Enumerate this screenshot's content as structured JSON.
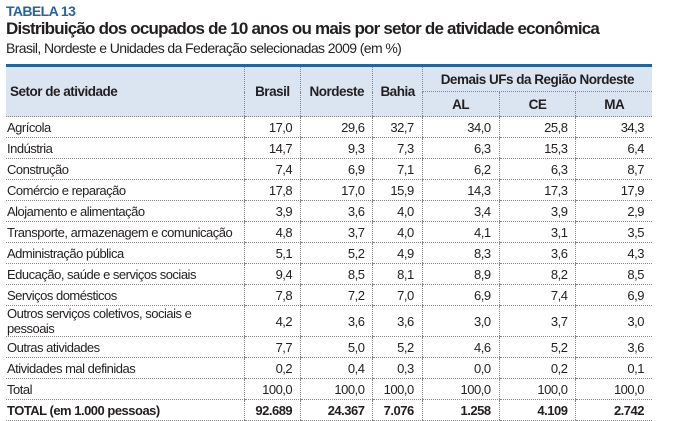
{
  "label": "TABELA 13",
  "title": "Distribuição dos ocupados de 10 anos ou mais por setor de atividade econômica",
  "subtitle": "Brasil, Nordeste e Unidades da Federação selecionadas 2009 (em %)",
  "headers": {
    "sector": "Setor de atividade",
    "brasil": "Brasil",
    "nordeste": "Nordeste",
    "bahia": "Bahia",
    "group": "Demais UFs da Região Nordeste",
    "al": "AL",
    "ce": "CE",
    "ma": "MA"
  },
  "rows": [
    [
      "Agrícola",
      "17,0",
      "29,6",
      "32,7",
      "34,0",
      "25,8",
      "34,3"
    ],
    [
      "Indústria",
      "14,7",
      "9,3",
      "7,3",
      "6,3",
      "15,3",
      "6,4"
    ],
    [
      "Construção",
      "7,4",
      "6,9",
      "7,1",
      "6,2",
      "6,3",
      "8,7"
    ],
    [
      "Comércio e reparação",
      "17,8",
      "17,0",
      "15,9",
      "14,3",
      "17,3",
      "17,9"
    ],
    [
      "Alojamento e alimentação",
      "3,9",
      "3,6",
      "4,0",
      "3,4",
      "3,9",
      "2,9"
    ],
    [
      "Transporte, armazenagem e comunicação",
      "4,8",
      "3,7",
      "4,0",
      "4,1",
      "3,1",
      "3,5"
    ],
    [
      "Administração pública",
      "5,1",
      "5,2",
      "4,9",
      "8,3",
      "3,6",
      "4,3"
    ],
    [
      "Educação, saúde e serviços sociais",
      "9,4",
      "8,5",
      "8,1",
      "8,9",
      "8,2",
      "8,5"
    ],
    [
      "Serviços domésticos",
      "7,8",
      "7,2",
      "7,0",
      "6,9",
      "7,4",
      "6,9"
    ],
    [
      "Outros serviços coletivos, sociais e pessoais",
      "4,2",
      "3,6",
      "3,6",
      "3,0",
      "3,7",
      "3,0"
    ],
    [
      "Outras atividades",
      "7,7",
      "5,0",
      "5,2",
      "4,6",
      "5,2",
      "3,6"
    ],
    [
      "Atividades mal definidas",
      "0,2",
      "0,4",
      "0,3",
      "0,0",
      "0,2",
      "0,1"
    ],
    [
      "Total",
      "100,0",
      "100,0",
      "100,0",
      "100,0",
      "100,0",
      "100,0"
    ],
    [
      "TOTAL (em 1.000 pessoas)",
      "92.689",
      "24.367",
      "7.076",
      "1.258",
      "4.109",
      "2.742"
    ]
  ],
  "colors": {
    "accent": "#2a6496",
    "header_bg": "#dbe5f1"
  }
}
